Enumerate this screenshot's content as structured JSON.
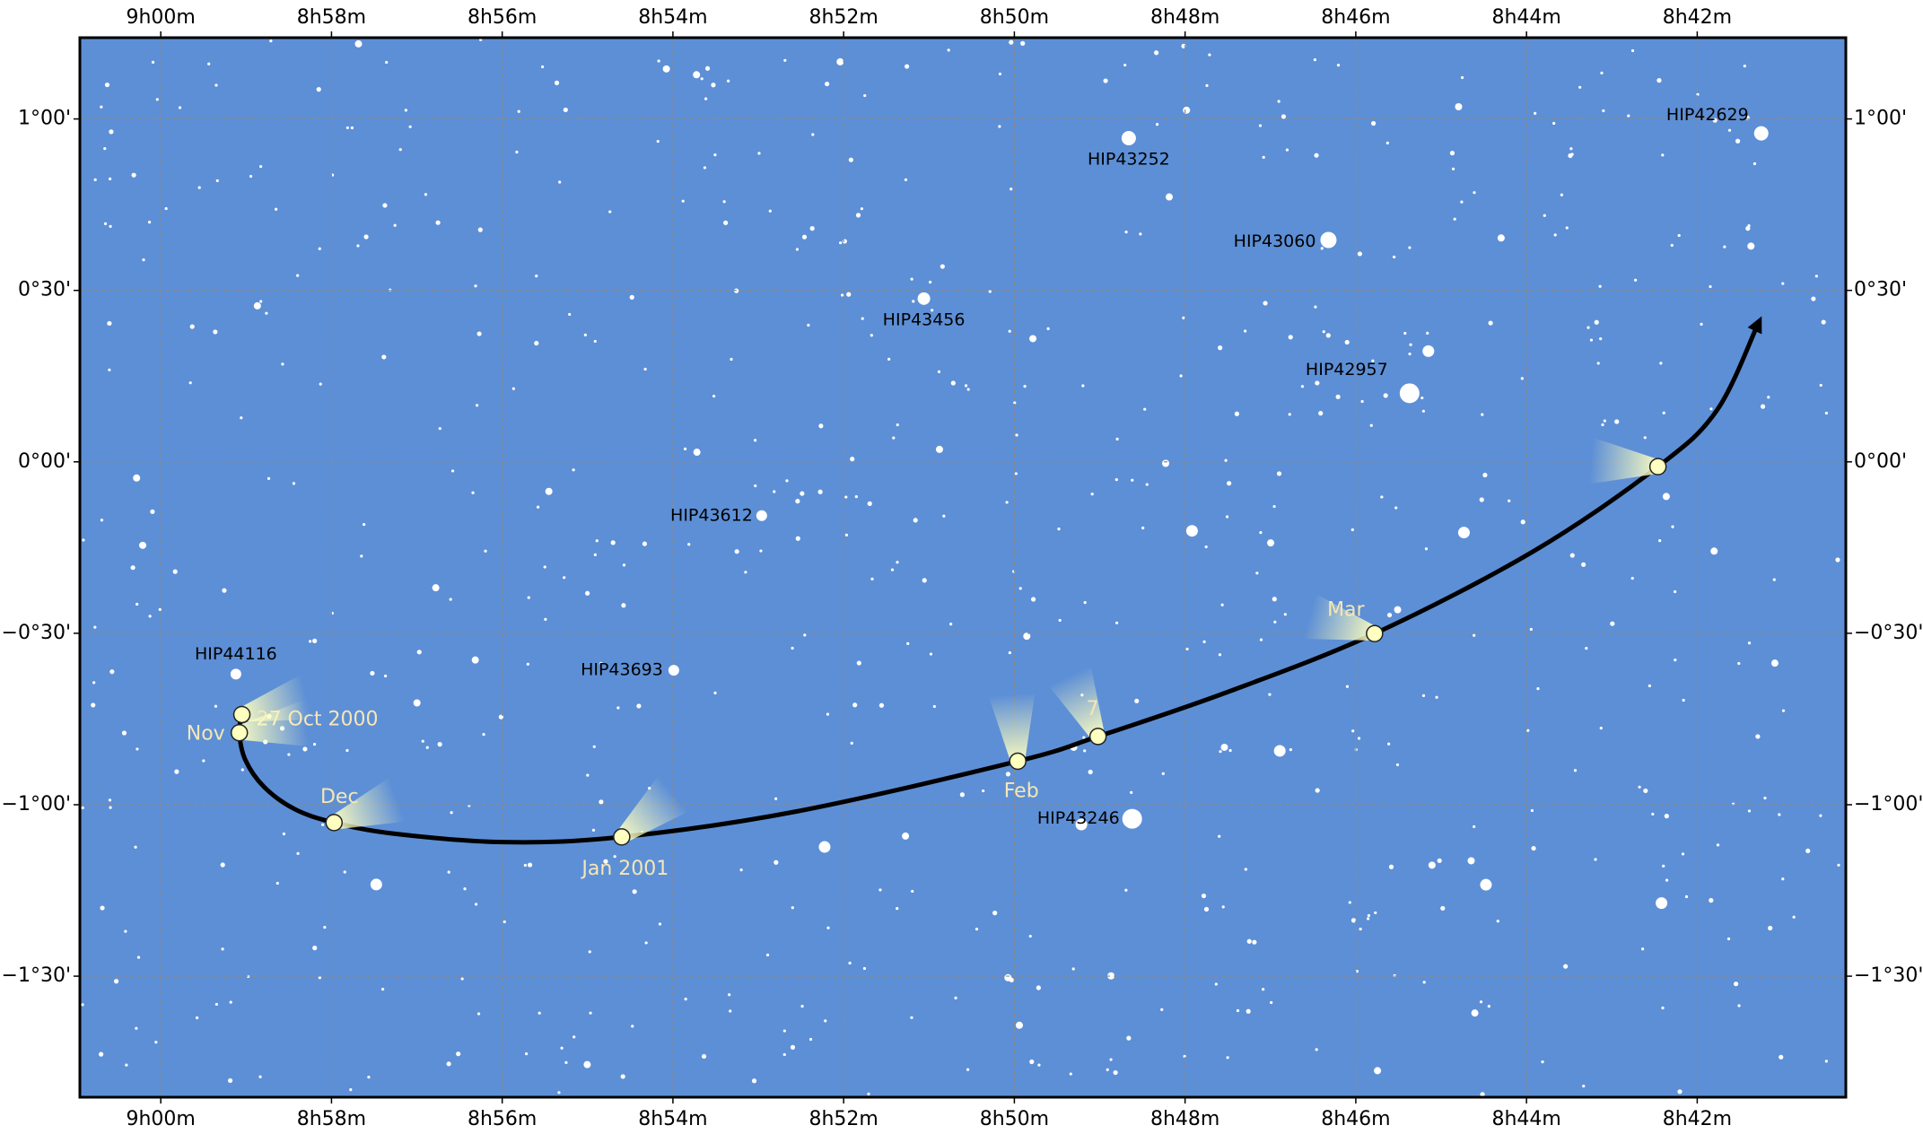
{
  "chart_data": {
    "type": "scatter",
    "xlim": [
      540.948,
      520.259
    ],
    "ylim": [
      -1.853,
      1.237
    ],
    "grid": true,
    "xticks": [
      {
        "value": 540,
        "label": "9h00m"
      },
      {
        "value": 538,
        "label": "8h58m"
      },
      {
        "value": 536,
        "label": "8h56m"
      },
      {
        "value": 534,
        "label": "8h54m"
      },
      {
        "value": 532,
        "label": "8h52m"
      },
      {
        "value": 530,
        "label": "8h50m"
      },
      {
        "value": 528,
        "label": "8h48m"
      },
      {
        "value": 526,
        "label": "8h46m"
      },
      {
        "value": 524,
        "label": "8h44m"
      },
      {
        "value": 522,
        "label": "8h42m"
      }
    ],
    "yticks": [
      {
        "value": 1,
        "label": "1°00'"
      },
      {
        "value": 0.5,
        "label": "0°30'"
      },
      {
        "value": 0,
        "label": "0°00'"
      },
      {
        "value": -0.5,
        "label": "−0°30'"
      },
      {
        "value": -1,
        "label": "−1°00'"
      },
      {
        "value": -1.5,
        "label": "−1°30'"
      }
    ],
    "stars": {
      "names": [
        "HIP42629",
        "HIP43252",
        "HIP43060",
        "HIP43456",
        "HIP42957",
        "HIP43612",
        "HIP44116",
        "HIP43693",
        "HIP43246"
      ],
      "x": [
        521.25,
        528.66,
        526.32,
        531.06,
        525.37,
        532.96,
        539.12,
        533.99,
        528.62
      ],
      "y": [
        0.958,
        0.944,
        0.647,
        0.476,
        0.2,
        -0.157,
        -0.619,
        -0.608,
        -1.041
      ],
      "color": "#ffffff"
    },
    "path": {
      "color": "#000000",
      "x": [
        539.05,
        539.08,
        539.01,
        538.79,
        538.43,
        537.97,
        537.28,
        535.99,
        534.6,
        532.54,
        529.96,
        529.02,
        527.51,
        525.78,
        523.92,
        522.46,
        521.77,
        521.29
      ],
      "y": [
        -0.737,
        -0.79,
        -0.869,
        -0.948,
        -1.013,
        -1.052,
        -1.084,
        -1.109,
        -1.094,
        -1.019,
        -0.873,
        -0.801,
        -0.672,
        -0.501,
        -0.261,
        -0.014,
        0.15,
        0.401
      ]
    },
    "positions": {
      "color": "#ffffc0",
      "labels": [
        "27 Oct 2000",
        "Nov",
        "Dec",
        "Jan 2001",
        "Feb",
        "7",
        "Mar",
        null
      ],
      "x": [
        539.05,
        539.08,
        537.97,
        534.6,
        529.96,
        529.02,
        525.78,
        522.46
      ],
      "y": [
        -0.737,
        -0.79,
        -1.052,
        -1.094,
        -0.873,
        -0.801,
        -0.501,
        -0.014
      ]
    }
  }
}
